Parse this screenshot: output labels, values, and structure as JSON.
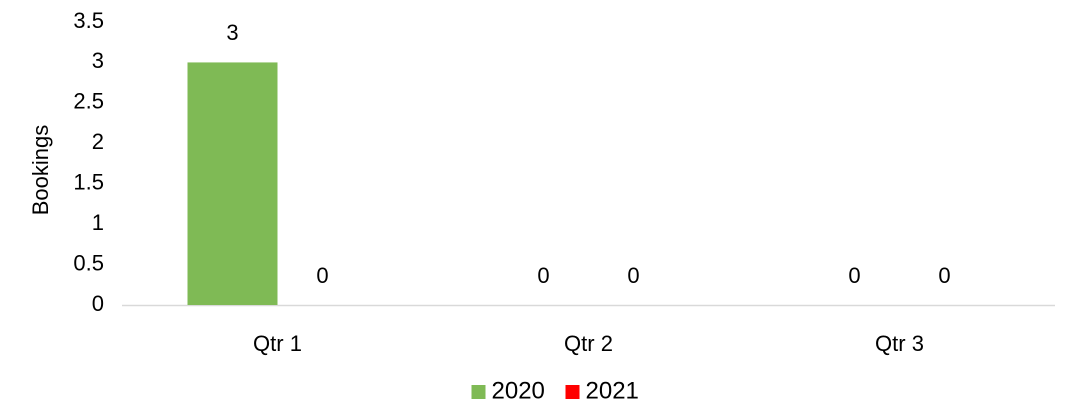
{
  "chart_data": {
    "type": "bar",
    "categories": [
      "Qtr 1",
      "Qtr 2",
      "Qtr 3"
    ],
    "series": [
      {
        "name": "2020",
        "color": "#7fba55",
        "values": [
          3,
          0,
          0
        ]
      },
      {
        "name": "2021",
        "color": "#ff0000",
        "values": [
          0,
          0,
          0
        ]
      }
    ],
    "title": "",
    "xlabel": "",
    "ylabel": "Bookings",
    "ylim": [
      0,
      3.5
    ],
    "yticks": [
      "0",
      "0.5",
      "1",
      "1.5",
      "2",
      "2.5",
      "3",
      "3.5"
    ],
    "grid": false,
    "legend_position": "bottom",
    "data_labels": true
  }
}
